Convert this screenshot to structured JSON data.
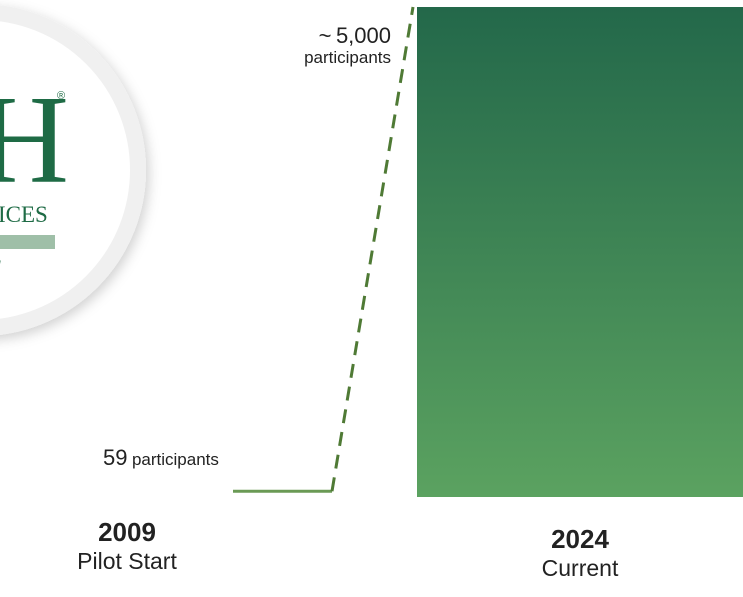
{
  "logo": {
    "letter": "H",
    "registered": "®",
    "word_fragment": "ICES",
    "script_fragment": "l",
    "colors": {
      "brand_green": "#1e6b45",
      "band": "#9fbfa8",
      "ring": "#f2f2f2"
    }
  },
  "chart_data": {
    "type": "bar",
    "categories": [
      "2009",
      "2024"
    ],
    "category_subtitles": [
      "Pilot Start",
      "Current"
    ],
    "values": [
      59,
      5000
    ],
    "ylim": [
      0,
      5000
    ],
    "data_labels": [
      {
        "value": "59",
        "unit": "participants"
      },
      {
        "prefix": "~",
        "value": "5,000",
        "unit": "participants"
      }
    ],
    "colors": {
      "bar_top": "#23684a",
      "bar_bottom": "#5ba260",
      "baseline": "#6a9a55",
      "connector": "#4f7a35"
    },
    "grid": false,
    "legend": "none"
  }
}
